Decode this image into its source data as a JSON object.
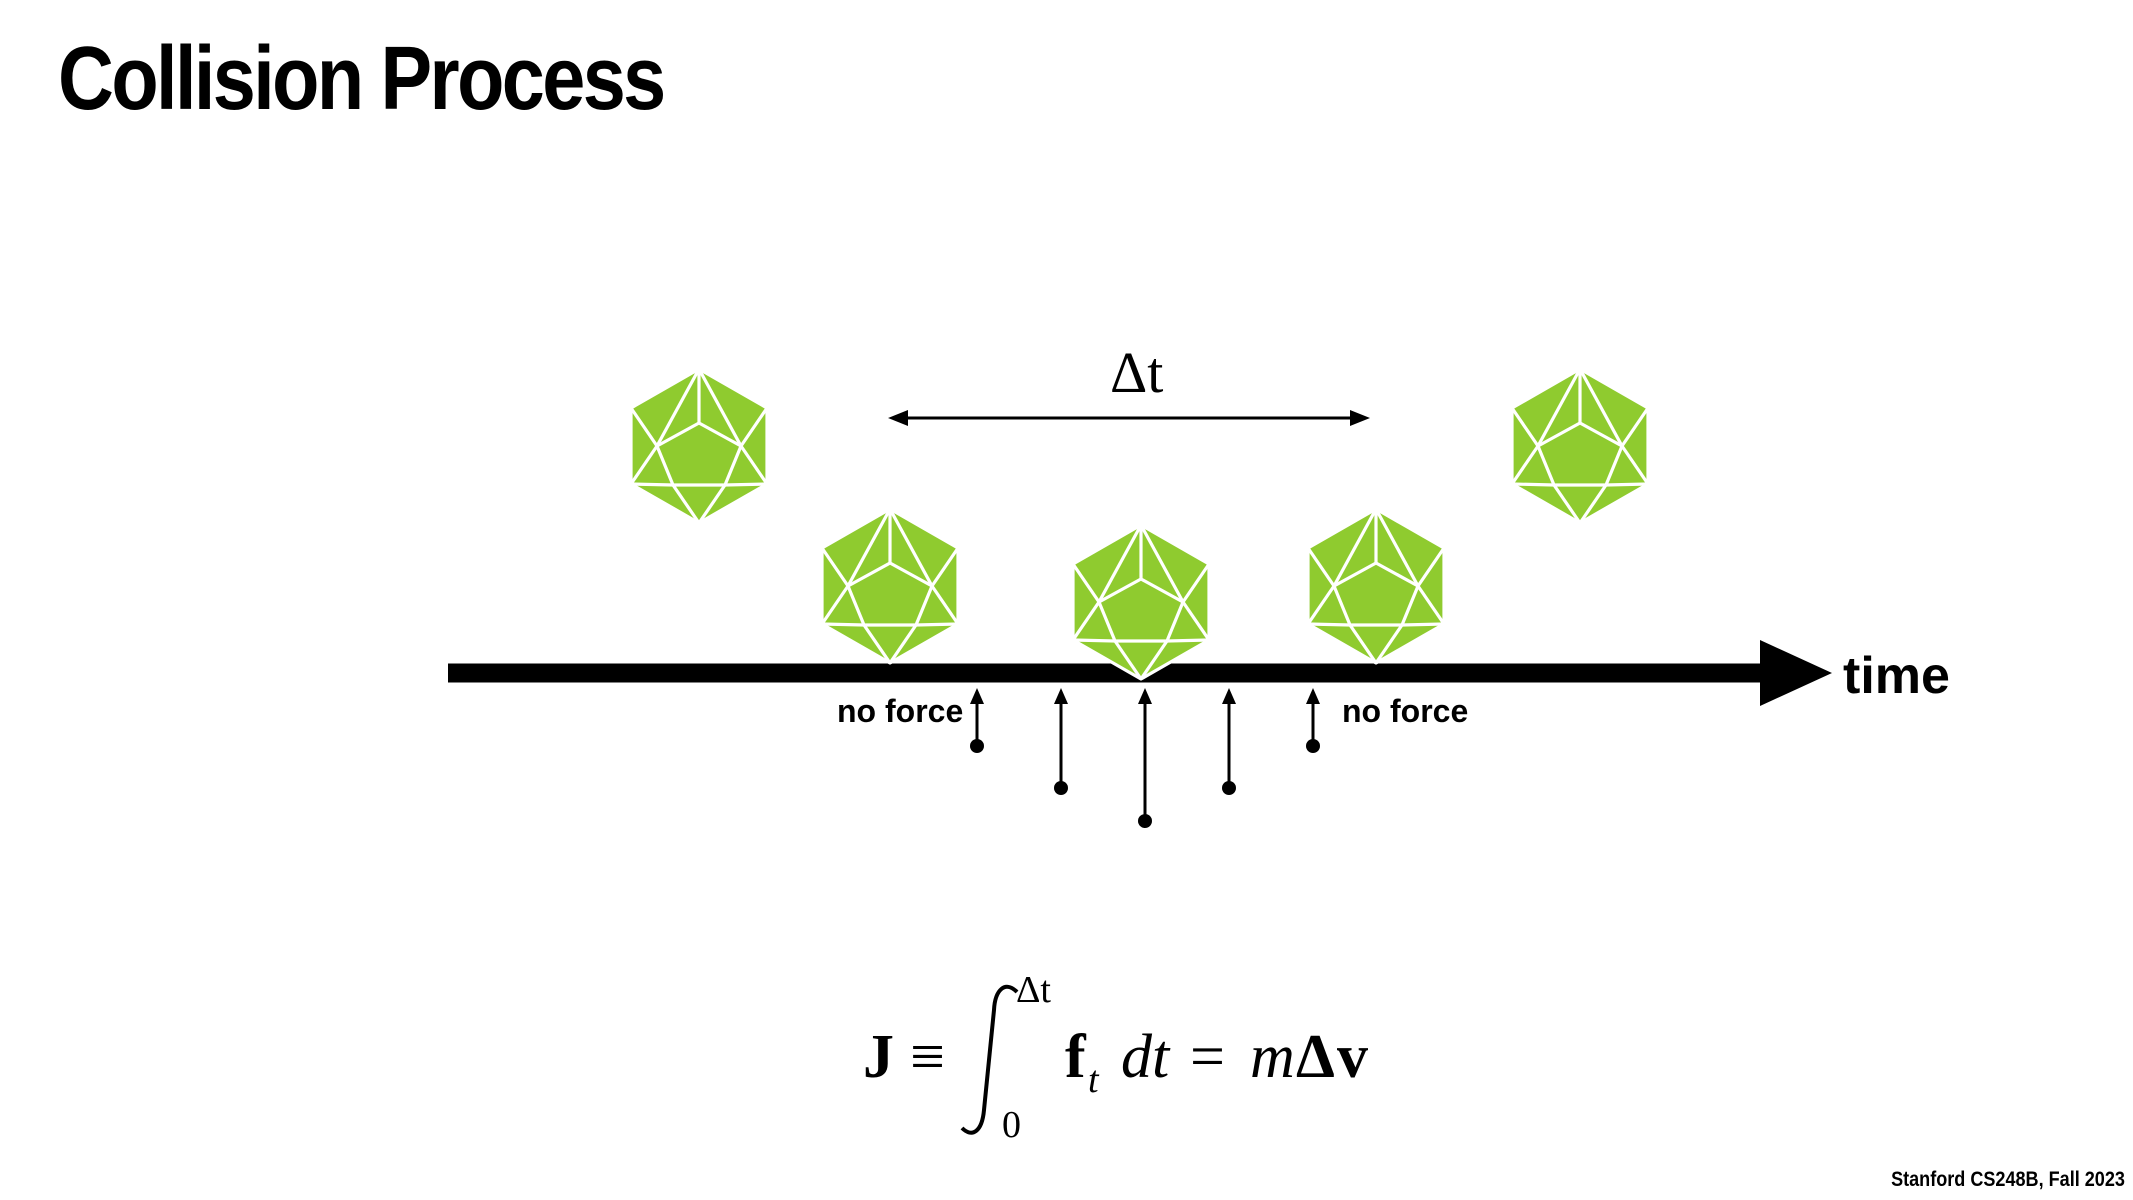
{
  "slide": {
    "title": "Collision Process",
    "footer": "Stanford CS248B, Fall 2023"
  },
  "diagram": {
    "axis_label": "time",
    "interval_label": "Δt",
    "no_force_label": "no force",
    "body_color": "#8fcb2f",
    "edge_color": "#ffffff",
    "body_icon": "icosahedron-icon",
    "force_magnitudes": [
      0,
      0.35,
      0.85,
      1.0,
      0.85,
      0.35,
      0
    ]
  },
  "formula": {
    "lhs": "J",
    "equiv": "≡",
    "upper_limit": "Δt",
    "lower_limit": "0",
    "integrand_f": "f",
    "integrand_sub": "t",
    "differential": "dt",
    "equals": "=",
    "rhs_m": "m",
    "rhs_delta": "Δ",
    "rhs_v": "v"
  }
}
